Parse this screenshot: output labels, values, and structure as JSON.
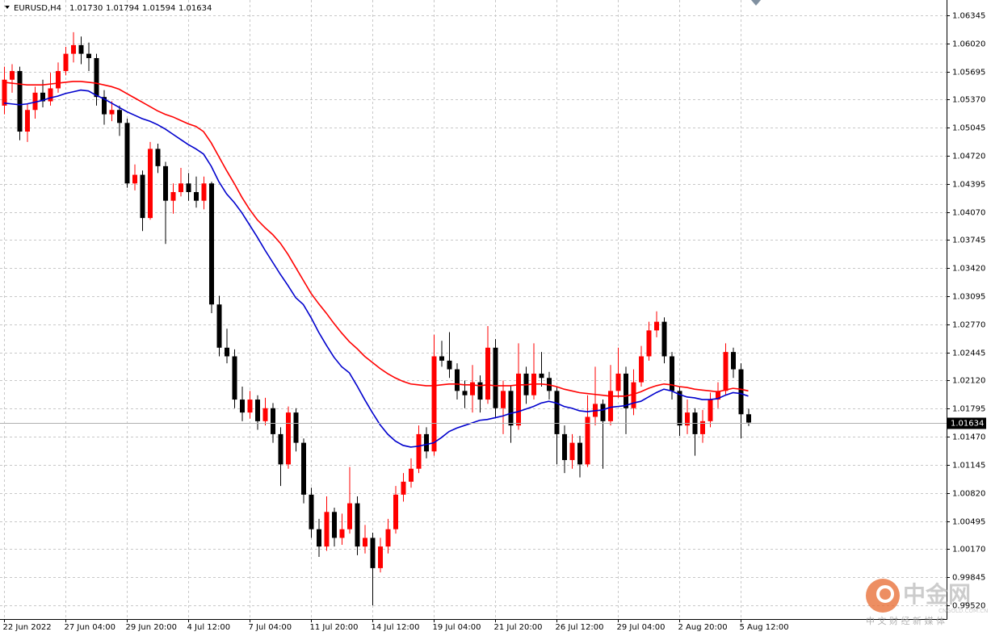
{
  "chart_data": {
    "type": "candlestick",
    "symbol": "EURUSD,H4",
    "header_values": [
      "1.01730",
      "1.01794",
      "1.01594",
      "1.01634"
    ],
    "bull_color": "#ff0000",
    "bear_color": "#000000",
    "candles": [
      [
        1.053,
        1.0575,
        1.052,
        1.056
      ],
      [
        1.056,
        1.0578,
        1.0545,
        1.057
      ],
      [
        1.057,
        1.0575,
        1.049,
        1.05
      ],
      [
        1.05,
        1.0532,
        1.0488,
        1.0525
      ],
      [
        1.0525,
        1.0552,
        1.0515,
        1.0545
      ],
      [
        1.0545,
        1.056,
        1.0528,
        1.0535
      ],
      [
        1.0535,
        1.0568,
        1.053,
        1.055
      ],
      [
        1.055,
        1.058,
        1.0545,
        1.057
      ],
      [
        1.057,
        1.0598,
        1.0565,
        1.059
      ],
      [
        1.059,
        1.0615,
        1.058,
        1.06
      ],
      [
        1.06,
        1.061,
        1.0578,
        1.059
      ],
      [
        1.059,
        1.0603,
        1.057,
        1.0585
      ],
      [
        1.0585,
        1.059,
        1.053,
        1.054
      ],
      [
        1.054,
        1.0548,
        1.0508,
        1.052
      ],
      [
        1.052,
        1.0535,
        1.0512,
        1.0525
      ],
      [
        1.0525,
        1.053,
        1.0495,
        1.051
      ],
      [
        1.051,
        1.0515,
        1.0435,
        1.044
      ],
      [
        1.044,
        1.0462,
        1.0432,
        1.045
      ],
      [
        1.045,
        1.0455,
        1.0385,
        1.04
      ],
      [
        1.04,
        1.0488,
        1.0398,
        1.048
      ],
      [
        1.048,
        1.0486,
        1.0452,
        1.046
      ],
      [
        1.046,
        1.0465,
        1.037,
        1.042
      ],
      [
        1.042,
        1.044,
        1.0405,
        1.043
      ],
      [
        1.043,
        1.0458,
        1.0425,
        1.044
      ],
      [
        1.044,
        1.0452,
        1.042,
        1.043
      ],
      [
        1.043,
        1.0448,
        1.0412,
        1.042
      ],
      [
        1.042,
        1.0448,
        1.041,
        1.044
      ],
      [
        1.044,
        1.0442,
        1.029,
        1.03
      ],
      [
        1.03,
        1.031,
        1.024,
        1.025
      ],
      [
        1.025,
        1.0272,
        1.0232,
        1.024
      ],
      [
        1.024,
        1.0248,
        1.018,
        1.019
      ],
      [
        1.019,
        1.0205,
        1.0165,
        1.0175
      ],
      [
        1.0175,
        1.02,
        1.0168,
        1.019
      ],
      [
        1.019,
        1.0195,
        1.0155,
        1.0165
      ],
      [
        1.0165,
        1.0192,
        1.016,
        1.018
      ],
      [
        1.018,
        1.0186,
        1.014,
        1.015
      ],
      [
        1.015,
        1.0158,
        1.009,
        1.0115
      ],
      [
        1.0115,
        1.0182,
        1.011,
        1.0175
      ],
      [
        1.0175,
        1.018,
        1.013,
        1.014
      ],
      [
        1.014,
        1.0145,
        1.007,
        1.008
      ],
      [
        1.008,
        1.0088,
        1.003,
        1.004
      ],
      [
        1.004,
        1.0052,
        1.0008,
        1.002
      ],
      [
        1.002,
        1.0078,
        1.0015,
        1.006
      ],
      [
        1.006,
        1.0065,
        1.002,
        1.003
      ],
      [
        1.003,
        1.0058,
        1.0022,
        1.004
      ],
      [
        1.004,
        1.0112,
        1.0035,
        1.007
      ],
      [
        1.007,
        1.0078,
        1.001,
        1.002
      ],
      [
        1.002,
        1.0045,
        1.0012,
        1.003
      ],
      [
        1.003,
        1.0036,
        0.9952,
        0.9995
      ],
      [
        0.9995,
        1.003,
        0.999,
        1.002
      ],
      [
        1.002,
        1.0052,
        1.0012,
        1.004
      ],
      [
        1.004,
        1.009,
        1.0035,
        1.008
      ],
      [
        1.008,
        1.0105,
        1.0072,
        1.0095
      ],
      [
        1.0095,
        1.0122,
        1.0088,
        1.011
      ],
      [
        1.011,
        1.016,
        1.0105,
        1.015
      ],
      [
        1.015,
        1.0158,
        1.0122,
        1.013
      ],
      [
        1.013,
        1.0265,
        1.0125,
        1.024
      ],
      [
        1.024,
        1.0258,
        1.0228,
        1.0235
      ],
      [
        1.0235,
        1.0268,
        1.0215,
        1.0225
      ],
      [
        1.0225,
        1.0232,
        1.019,
        1.02
      ],
      [
        1.02,
        1.0212,
        1.018,
        1.0195
      ],
      [
        1.0195,
        1.023,
        1.0175,
        1.021
      ],
      [
        1.021,
        1.0218,
        1.0175,
        1.019
      ],
      [
        1.019,
        1.0275,
        1.0185,
        1.025
      ],
      [
        1.025,
        1.026,
        1.017,
        1.018
      ],
      [
        1.018,
        1.0212,
        1.015,
        1.02
      ],
      [
        1.02,
        1.0206,
        1.014,
        1.016
      ],
      [
        1.016,
        1.0255,
        1.0155,
        1.022
      ],
      [
        1.022,
        1.0228,
        1.0185,
        1.0195
      ],
      [
        1.0195,
        1.0255,
        1.019,
        1.022
      ],
      [
        1.022,
        1.0245,
        1.0205,
        1.0215
      ],
      [
        1.0215,
        1.0222,
        1.019,
        1.02
      ],
      [
        1.02,
        1.0205,
        1.0115,
        1.015
      ],
      [
        1.015,
        1.016,
        1.0105,
        1.012
      ],
      [
        1.012,
        1.015,
        1.011,
        1.014
      ],
      [
        1.014,
        1.0148,
        1.01,
        1.0115
      ],
      [
        1.0115,
        1.0195,
        1.0112,
        1.017
      ],
      [
        1.017,
        1.0228,
        1.016,
        1.0185
      ],
      [
        1.0185,
        1.019,
        1.011,
        1.0165
      ],
      [
        1.0165,
        1.023,
        1.016,
        1.02
      ],
      [
        1.02,
        1.025,
        1.0192,
        1.022
      ],
      [
        1.022,
        1.0228,
        1.015,
        1.018
      ],
      [
        1.018,
        1.0225,
        1.0172,
        1.021
      ],
      [
        1.021,
        1.0252,
        1.0205,
        1.024
      ],
      [
        1.024,
        1.028,
        1.0235,
        1.027
      ],
      [
        1.027,
        1.0292,
        1.0262,
        1.028
      ],
      [
        1.028,
        1.0285,
        1.0232,
        1.024
      ],
      [
        1.024,
        1.0245,
        1.019,
        1.02
      ],
      [
        1.02,
        1.0205,
        1.0148,
        1.016
      ],
      [
        1.016,
        1.019,
        1.015,
        1.0175
      ],
      [
        1.0175,
        1.018,
        1.0125,
        1.015
      ],
      [
        1.015,
        1.0178,
        1.014,
        1.0165
      ],
      [
        1.0165,
        1.0198,
        1.0158,
        1.019
      ],
      [
        1.019,
        1.021,
        1.018,
        1.02
      ],
      [
        1.02,
        1.0255,
        1.0195,
        1.0245
      ],
      [
        1.0245,
        1.025,
        1.0215,
        1.0225
      ],
      [
        1.0225,
        1.0232,
        1.0145,
        1.0173
      ],
      [
        1.0173,
        1.01794,
        1.01594,
        1.01634
      ]
    ],
    "series": [
      {
        "color": "#ff0000",
        "values": [
          1.0557,
          1.0556,
          1.0555,
          1.0554,
          1.0554,
          1.0554,
          1.0555,
          1.0556,
          1.0557,
          1.0558,
          1.0558,
          1.0557,
          1.0556,
          1.0554,
          1.0552,
          1.0549,
          1.0544,
          1.0539,
          1.0534,
          1.0529,
          1.0524,
          1.052,
          1.0517,
          1.0513,
          1.0509,
          1.0506,
          1.05,
          1.0487,
          1.0471,
          1.0455,
          1.044,
          1.0424,
          1.041,
          1.0398,
          1.0389,
          1.0381,
          1.0371,
          1.0358,
          1.0343,
          1.0328,
          1.0313,
          1.0301,
          1.029,
          1.0278,
          1.0267,
          1.0257,
          1.0249,
          1.024,
          1.0233,
          1.0226,
          1.022,
          1.0215,
          1.0211,
          1.0208,
          1.0207,
          1.0206,
          1.0206,
          1.0207,
          1.0208,
          1.0208,
          1.0207,
          1.0207,
          1.0206,
          1.0207,
          1.0206,
          1.0206,
          1.0206,
          1.0207,
          1.0207,
          1.0208,
          1.0208,
          1.0207,
          1.0205,
          1.0202,
          1.02,
          1.0198,
          1.0197,
          1.0196,
          1.0195,
          1.0194,
          1.0194,
          1.0194,
          1.0196,
          1.0199,
          1.0203,
          1.0206,
          1.0208,
          1.0207,
          1.0205,
          1.0204,
          1.0202,
          1.0201,
          1.02,
          1.0199,
          1.0201,
          1.0203,
          1.0202,
          1.02
        ]
      },
      {
        "color": "#0000cd",
        "values": [
          1.0533,
          1.0532,
          1.0531,
          1.0532,
          1.0534,
          1.0536,
          1.0539,
          1.0541,
          1.0544,
          1.0546,
          1.0548,
          1.0547,
          1.0542,
          1.0538,
          1.0533,
          1.0528,
          1.0523,
          1.0519,
          1.0515,
          1.0512,
          1.0508,
          1.0503,
          1.0497,
          1.0491,
          1.0485,
          1.048,
          1.0474,
          1.046,
          1.0442,
          1.0428,
          1.0418,
          1.0406,
          1.0392,
          1.0378,
          1.0363,
          1.0349,
          1.0335,
          1.0322,
          1.0308,
          1.03,
          1.0285,
          1.0268,
          1.0253,
          1.0239,
          1.0228,
          1.0221,
          1.0206,
          1.019,
          1.0175,
          1.0161,
          1.015,
          1.0142,
          1.0137,
          1.0135,
          1.0136,
          1.0138,
          1.014,
          1.0146,
          1.0153,
          1.0157,
          1.016,
          1.0163,
          1.0166,
          1.0167,
          1.0169,
          1.0171,
          1.0174,
          1.0176,
          1.0179,
          1.0182,
          1.0186,
          1.0188,
          1.0186,
          1.0182,
          1.018,
          1.0177,
          1.0176,
          1.0177,
          1.0178,
          1.0181,
          1.0182,
          1.0183,
          1.0186,
          1.0188,
          1.0193,
          1.0198,
          1.0202,
          1.02,
          1.0196,
          1.0193,
          1.0192,
          1.019,
          1.019,
          1.0191,
          1.0195,
          1.0198,
          1.0197,
          1.0194
        ]
      }
    ],
    "ylim": [
      0.99361,
      1.06522
    ],
    "yticks": [
      1.06345,
      {
        "value": 1.0602,
        "label": "1.06020"
      },
      1.05695,
      {
        "value": 1.0537,
        "label": "1.05370"
      },
      1.05045,
      {
        "value": 1.0472,
        "label": "1.04720"
      },
      1.04395,
      {
        "value": 1.0407,
        "label": "1.04070"
      },
      1.03745,
      {
        "value": 1.0342,
        "label": "1.03420"
      },
      1.03095,
      {
        "value": 1.0277,
        "label": "1.02770"
      },
      1.02445,
      {
        "value": 1.0212,
        "label": "1.02120"
      },
      1.01795,
      {
        "value": 1.0147,
        "label": "1.01470"
      },
      1.01145,
      {
        "value": 1.0082,
        "label": "1.00820"
      },
      1.00495,
      {
        "value": 1.0017,
        "label": "1.00170"
      },
      0.99845,
      {
        "value": 0.9952,
        "label": "0.99520"
      }
    ],
    "xticks": [
      {
        "value": 0,
        "label": "22 Jun 2022"
      },
      {
        "value": 8,
        "label": "27 Jun 04:00"
      },
      {
        "value": 16,
        "label": "29 Jun 20:00"
      },
      {
        "value": 24,
        "label": "4 Jul 12:00"
      },
      {
        "value": 32,
        "label": "7 Jul 04:00"
      },
      {
        "value": 40,
        "label": "11 Jul 20:00"
      },
      {
        "value": 48,
        "label": "14 Jul 12:00"
      },
      {
        "value": 56,
        "label": "19 Jul 04:00"
      },
      {
        "value": 64,
        "label": "21 Jul 20:00"
      },
      {
        "value": 72,
        "label": "26 Jul 12:00"
      },
      {
        "value": 80,
        "label": "29 Jul 04:00"
      },
      {
        "value": 88,
        "label": "2 Aug 20:00"
      },
      {
        "value": 96,
        "label": "5 Aug 12:00"
      }
    ],
    "last_price": 1.01634,
    "grid": true
  },
  "watermark": {
    "brand": "中金网",
    "site": "CNGOLD.COM.CN",
    "slogan": "中 文 财 经 新 媒 体"
  }
}
